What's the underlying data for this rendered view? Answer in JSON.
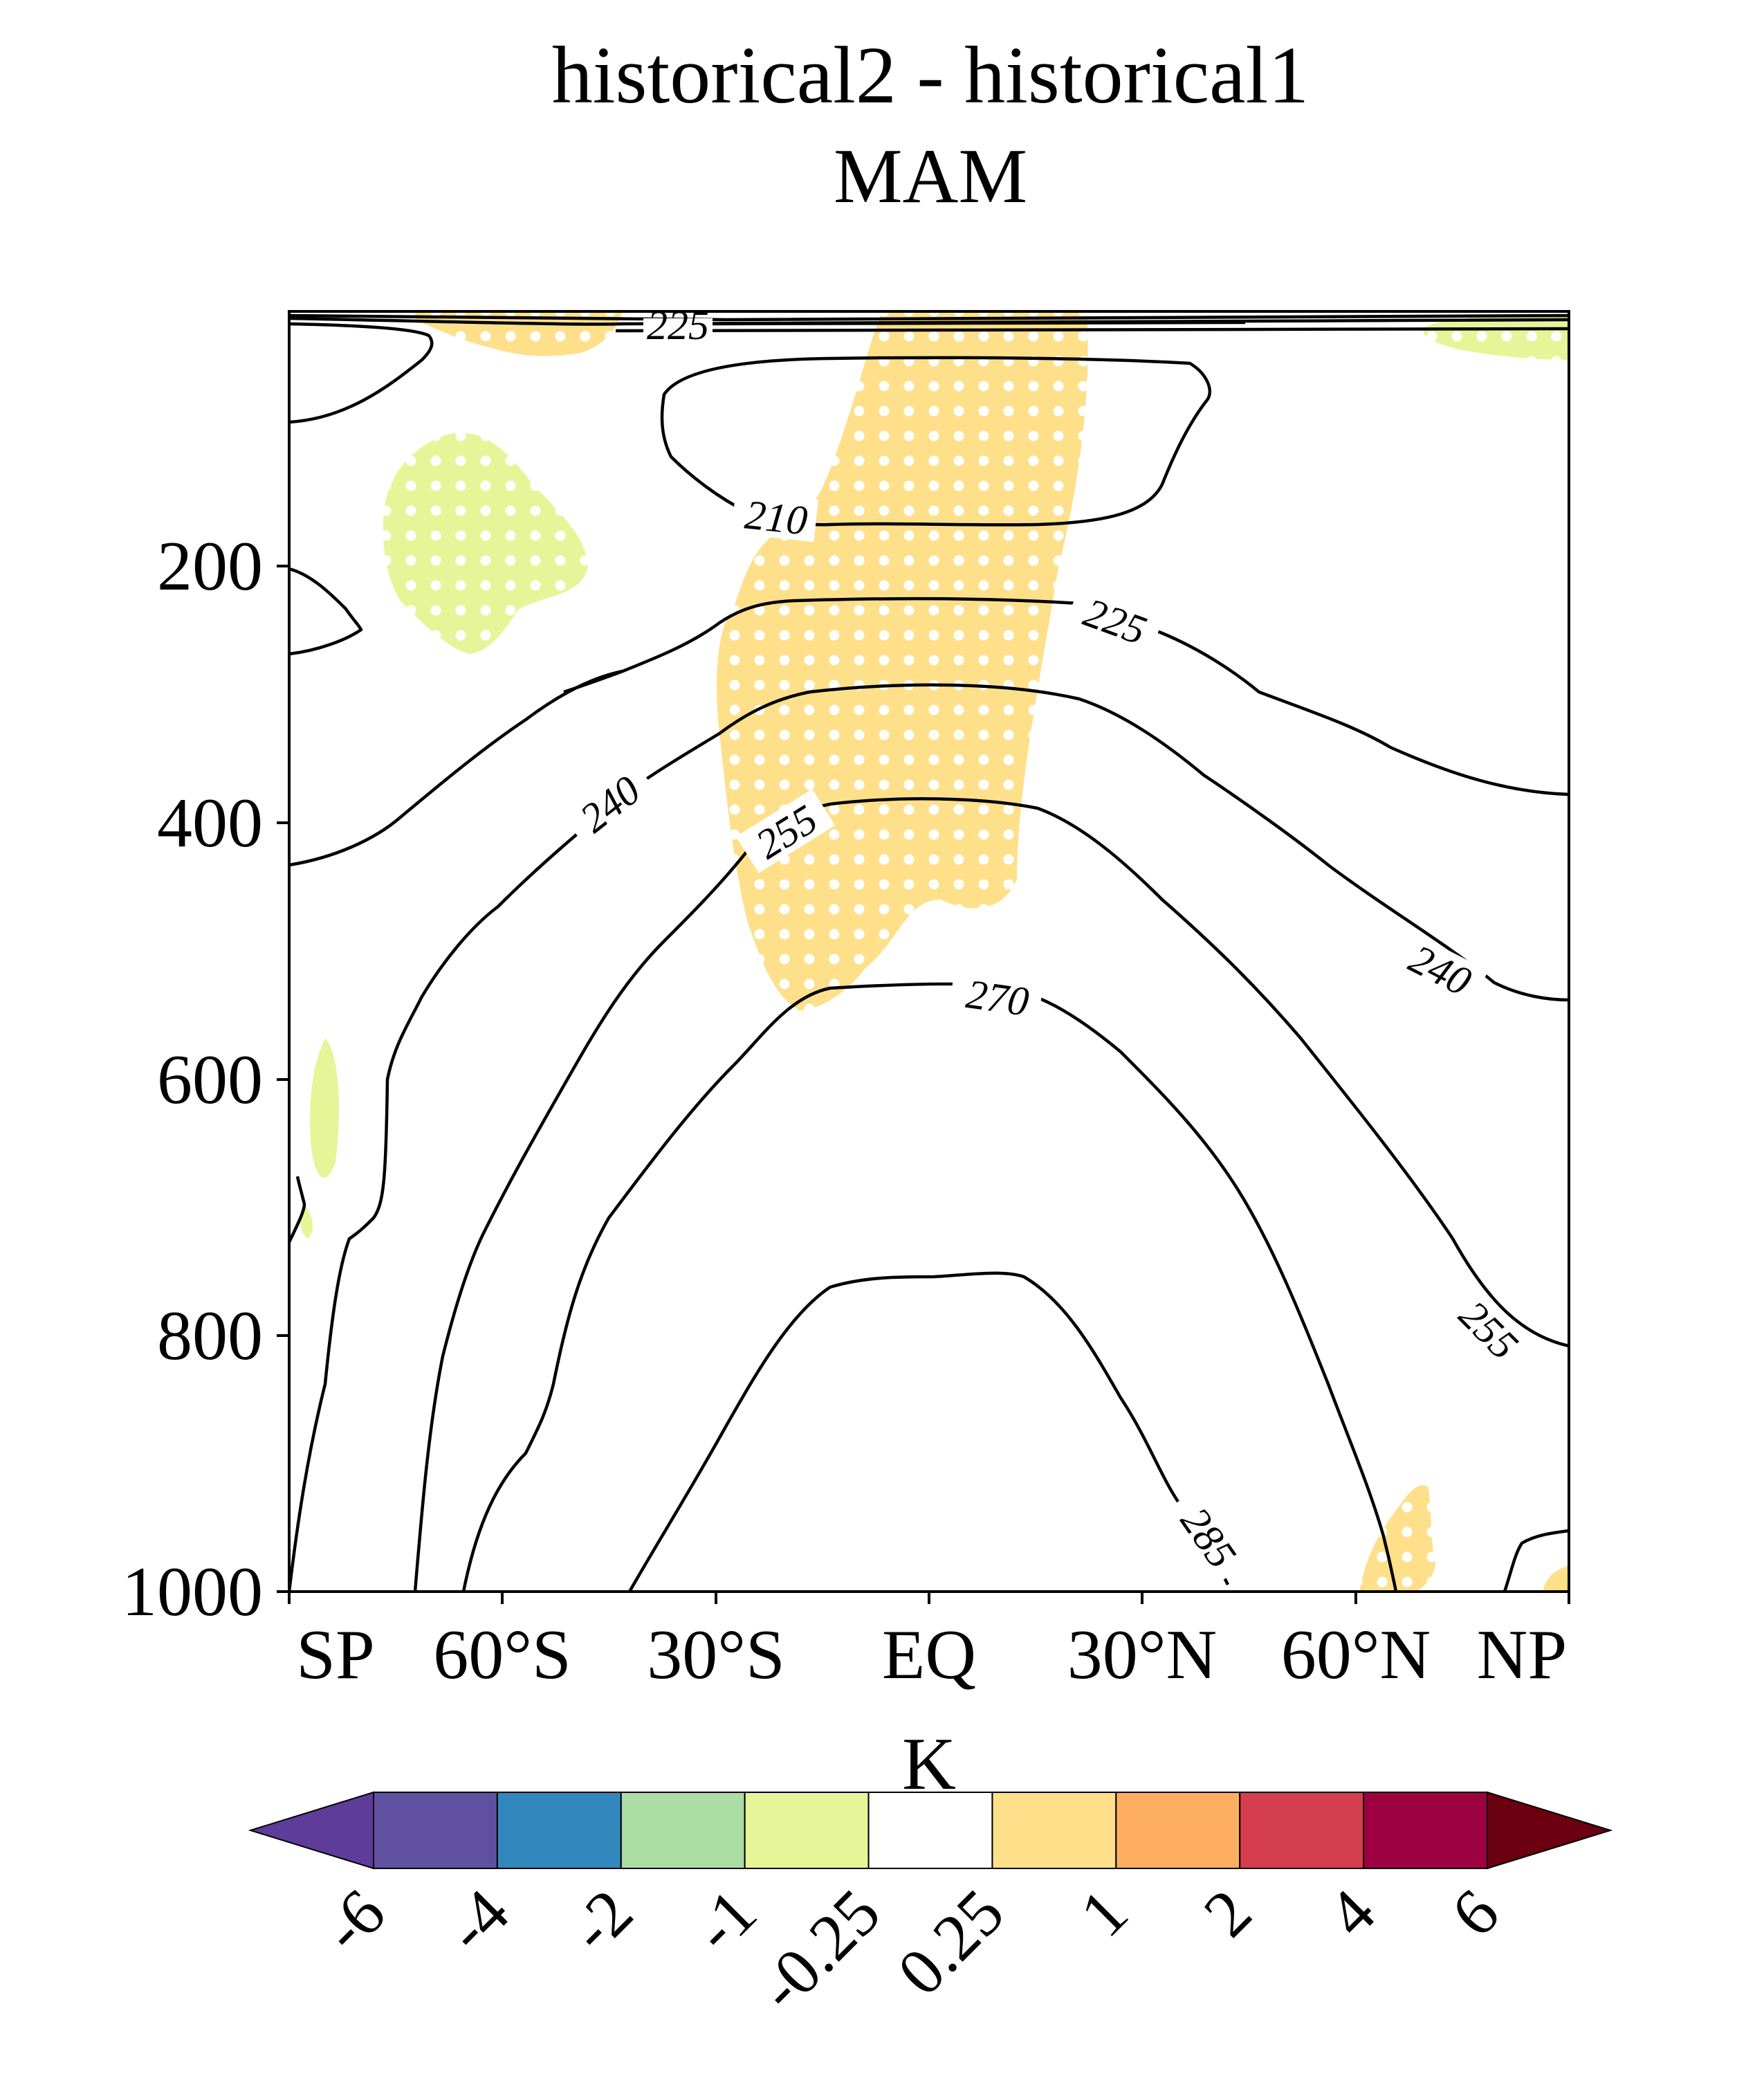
{
  "chart_data": {
    "type": "contour",
    "title": "historical2 - historical1",
    "subtitle": "MAM",
    "xlabel": "",
    "ylabel": "",
    "xticks": [
      "SP",
      "60°S",
      "30°S",
      "EQ",
      "30°N",
      "60°N",
      "NP"
    ],
    "xtick_values": [
      -90,
      -60,
      -30,
      0,
      30,
      60,
      90
    ],
    "xlim": [
      -90,
      90
    ],
    "yticks": [
      "200",
      "400",
      "600",
      "800",
      "1000"
    ],
    "ytick_values": [
      200,
      400,
      600,
      800,
      1000
    ],
    "ylim": [
      1000,
      10
    ],
    "contour_levels": [
      "210",
      "225",
      "240",
      "255",
      "270",
      "285"
    ],
    "colorbar": {
      "label": "K",
      "ticks": [
        "-6",
        "-4",
        "-2",
        "-1",
        "-0.25",
        "0.25",
        "1",
        "2",
        "4",
        "6"
      ],
      "colors": [
        "#5e3c99",
        "#6050a0",
        "#3288bd",
        "#abdda4",
        "#e6f598",
        "#ffffff",
        "#fee08b",
        "#fdae61",
        "#d53e4f",
        "#9e0142",
        "#6b0010"
      ]
    },
    "stippling": "white dots over significant regions",
    "colors": {
      "warm_fill": "#fee08b",
      "cool_fill": "#e6f598",
      "contour_line": "#000000"
    }
  }
}
